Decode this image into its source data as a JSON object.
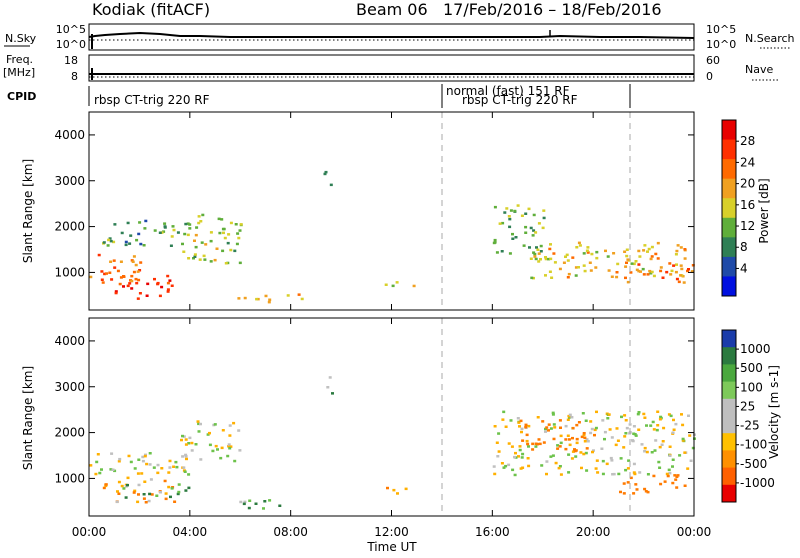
{
  "header": {
    "station": "Kodiak (fitACF)",
    "beam": "Beam 06",
    "date_range": "17/Feb/2016 – 18/Feb/2016"
  },
  "sky_panel": {
    "left_label": "N.Sky",
    "left_ticks": [
      "10^5",
      "10^0"
    ],
    "right_ticks": [
      "10^5",
      "10^0"
    ],
    "right_label": "N.Search"
  },
  "freq_panel": {
    "left_label_top": "Freq.",
    "left_label_unit": "[MHz]",
    "left_ticks": [
      "18",
      "8"
    ],
    "right_ticks": [
      "60",
      "0"
    ],
    "right_label": "Nave"
  },
  "cpid_panel": {
    "label": "CPID",
    "segments": [
      {
        "text": "rbsp CT-trig 220 RF",
        "start_hour": 0
      },
      {
        "text": "normal (fast) 151 RF",
        "start_hour": 14.0
      },
      {
        "text": "rbsp CT-trig 220 RF",
        "start_hour": 14.0,
        "end_hour": 21.5
      }
    ],
    "markers_hours": [
      14.0,
      21.5
    ]
  },
  "axes": {
    "y_label": "Slant Range [km]",
    "y_ticks": [
      1000,
      2000,
      3000,
      4000
    ],
    "x_label": "Time UT",
    "x_ticks": [
      "00:00",
      "04:00",
      "08:00",
      "12:00",
      "16:00",
      "20:00",
      "00:00"
    ],
    "x_range_hours": [
      0,
      24
    ],
    "y_range_km": [
      180,
      4500
    ]
  },
  "power_colorbar": {
    "label": "Power [dB]",
    "ticks": [
      "28",
      "24",
      "20",
      "16",
      "12",
      "8",
      "4"
    ],
    "colors": [
      "#0010e0",
      "#1f4aa8",
      "#2f7f55",
      "#5fae3a",
      "#d8d02a",
      "#f0a020",
      "#ff6a00",
      "#ff3000",
      "#e80000"
    ]
  },
  "velocity_colorbar": {
    "label": "Velocity [m s-1]",
    "ticks": [
      "1000",
      "500",
      "100",
      "25",
      "-25",
      "-100",
      "-500",
      "-1000"
    ],
    "colors": [
      "#1a3caa",
      "#2b7a3f",
      "#4aa83e",
      "#7dc95a",
      "#bfbfbf",
      "#bfbfbf",
      "#ffc000",
      "#ff9000",
      "#ff6000",
      "#e80000"
    ]
  },
  "chart_data": [
    {
      "type": "heatmap",
      "title": "Power [dB]",
      "xlabel": "Time UT",
      "ylabel": "Slant Range [km]",
      "xlim_hours": [
        0,
        24
      ],
      "ylim_km": [
        180,
        4500
      ],
      "grid": false,
      "features": [
        {
          "t0": 0.0,
          "t1": 2.0,
          "r0": 700,
          "r1": 1500,
          "power_db": 24
        },
        {
          "t0": 1.0,
          "t1": 3.6,
          "r0": 450,
          "r1": 950,
          "power_db": 28
        },
        {
          "t0": 3.6,
          "t1": 6.0,
          "r0": 1200,
          "r1": 2300,
          "power_db": 14
        },
        {
          "t0": 0.5,
          "t1": 4.0,
          "r0": 1600,
          "r1": 2200,
          "power_db": 10
        },
        {
          "t0": 5.8,
          "t1": 8.5,
          "r0": 350,
          "r1": 550,
          "power_db": 18
        },
        {
          "t0": 9.3,
          "t1": 9.6,
          "r0": 2800,
          "r1": 3300,
          "power_db": 12
        },
        {
          "t0": 11.4,
          "t1": 13.0,
          "r0": 700,
          "r1": 850,
          "power_db": 14
        },
        {
          "t0": 16.0,
          "t1": 18.0,
          "r0": 1300,
          "r1": 2500,
          "power_db": 12
        },
        {
          "t0": 17.5,
          "t1": 24.0,
          "r0": 900,
          "r1": 1700,
          "power_db": 18
        },
        {
          "t0": 21.0,
          "t1": 24.0,
          "r0": 800,
          "r1": 1200,
          "power_db": 24
        }
      ]
    },
    {
      "type": "heatmap",
      "title": "Velocity [m s-1]",
      "xlabel": "Time UT",
      "ylabel": "Slant Range [km]",
      "xlim_hours": [
        0,
        24
      ],
      "ylim_km": [
        180,
        4500
      ],
      "grid": false,
      "features": [
        {
          "t0": 0.0,
          "t1": 4.0,
          "r0": 1000,
          "r1": 1600,
          "velocity": 0
        },
        {
          "t0": 3.6,
          "t1": 6.0,
          "r0": 1400,
          "r1": 2300,
          "velocity": 0
        },
        {
          "t0": 0.5,
          "t1": 3.5,
          "r0": 500,
          "r1": 1000,
          "velocity": -100
        },
        {
          "t0": 1.0,
          "t1": 4.0,
          "r0": 600,
          "r1": 900,
          "velocity": 100
        },
        {
          "t0": 5.8,
          "t1": 8.5,
          "r0": 350,
          "r1": 550,
          "velocity": 100
        },
        {
          "t0": 9.3,
          "t1": 9.6,
          "r0": 2800,
          "r1": 3300,
          "velocity": 50
        },
        {
          "t0": 11.4,
          "t1": 13.0,
          "r0": 700,
          "r1": 850,
          "velocity": -100
        },
        {
          "t0": 16.0,
          "t1": 24.0,
          "r0": 1100,
          "r1": 2500,
          "velocity": 0
        },
        {
          "t0": 17.0,
          "t1": 20.0,
          "r0": 1600,
          "r1": 2300,
          "velocity": -300
        },
        {
          "t0": 21.0,
          "t1": 24.0,
          "r0": 700,
          "r1": 1100,
          "velocity": -200
        }
      ]
    }
  ]
}
